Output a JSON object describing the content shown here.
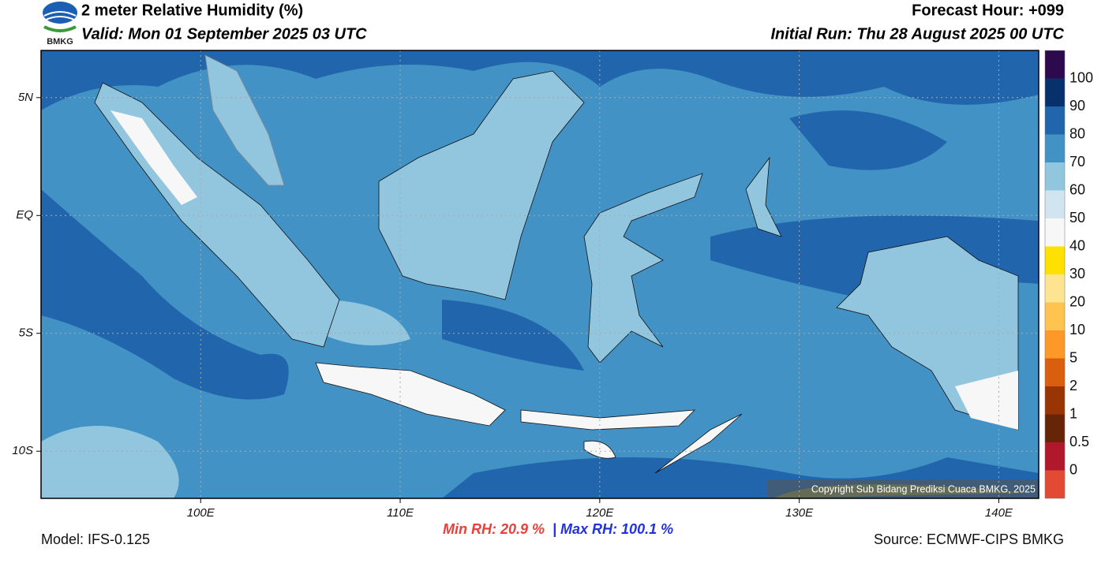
{
  "header": {
    "title": "2 meter Relative Humidity (%)",
    "valid": "Valid: Mon 01 September 2025 03 UTC",
    "forecast_hour": "Forecast Hour: +099",
    "initial_run": "Initial Run: Thu 28 August 2025 00 UTC",
    "logo": "BMKG"
  },
  "map": {
    "xlim": [
      92,
      142
    ],
    "ylim": [
      -12,
      7
    ],
    "xticks": [
      {
        "value": 100,
        "label": "100E"
      },
      {
        "value": 110,
        "label": "110E"
      },
      {
        "value": 120,
        "label": "120E"
      },
      {
        "value": 130,
        "label": "130E"
      },
      {
        "value": 140,
        "label": "140E"
      }
    ],
    "yticks": [
      {
        "value": 5,
        "label": "5N"
      },
      {
        "value": 0,
        "label": "EQ"
      },
      {
        "value": -5,
        "label": "5S"
      },
      {
        "value": -10,
        "label": "10S"
      }
    ],
    "grid": true,
    "copyright": "Copyright Sub Bidang Prediksi Cuaca BMKG, 2025"
  },
  "colorbar": {
    "levels": [
      100,
      90,
      80,
      70,
      60,
      50,
      40,
      30,
      20,
      10,
      5,
      2,
      1,
      0.5,
      0
    ],
    "colors": [
      "#2d0a4e",
      "#08306b",
      "#2166ac",
      "#4292c6",
      "#92c5de",
      "#d1e5f0",
      "#f7f7f7",
      "#ffe100",
      "#fee391",
      "#fec44f",
      "#fe9929",
      "#d95f0e",
      "#993404",
      "#662506",
      "#b2182b",
      "#e34a33"
    ]
  },
  "footer": {
    "model": "Model: IFS-0.125",
    "min_rh": "Min RH:  20.9 %",
    "max_rh": "| Max RH: 100.1 %",
    "source": "Source: ECMWF-CIPS BMKG"
  }
}
